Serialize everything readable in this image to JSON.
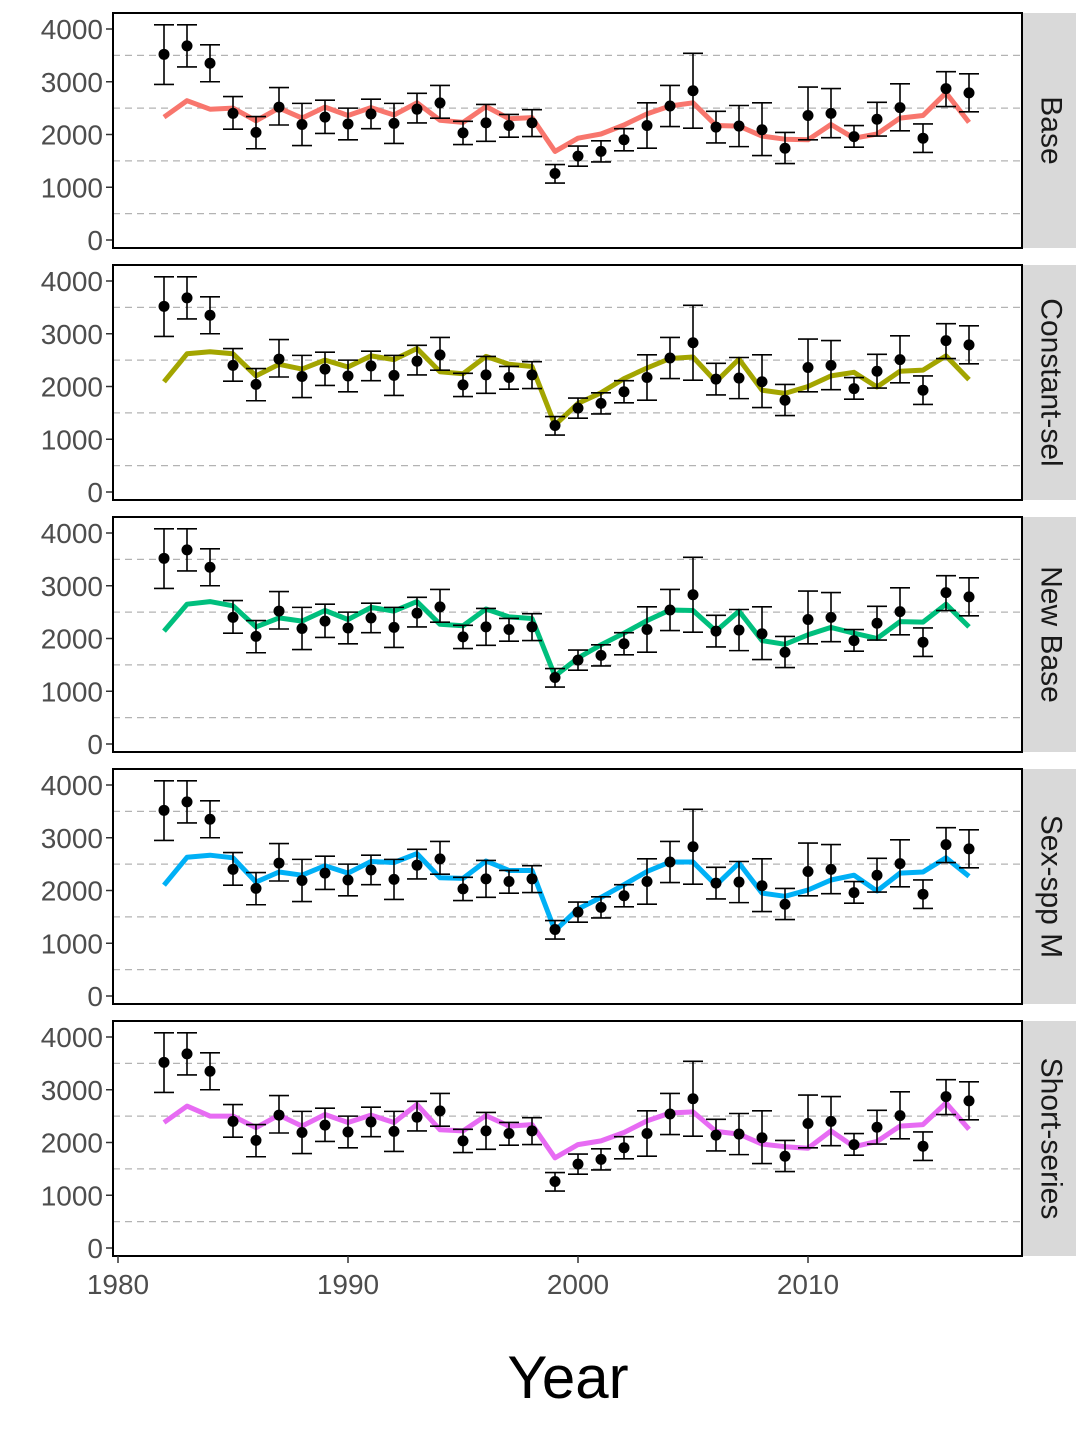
{
  "chart_data": {
    "type": "line",
    "title": "",
    "xlabel": "Year",
    "ylabel": "",
    "xlim": [
      1980,
      2019
    ],
    "ylim": [
      0,
      4200
    ],
    "x_ticks": [
      1980,
      1990,
      2000,
      2010
    ],
    "y_ticks": [
      0,
      1000,
      2000,
      3000,
      4000
    ],
    "grid": "dashed horizontal lines at 500, 1500, 2500, 3500",
    "observed": {
      "x": [
        1982,
        1983,
        1984,
        1985,
        1986,
        1987,
        1988,
        1989,
        1990,
        1991,
        1992,
        1993,
        1994,
        1995,
        1996,
        1997,
        1998,
        1999,
        2000,
        2001,
        2002,
        2003,
        2004,
        2005,
        2006,
        2007,
        2008,
        2009,
        2010,
        2011,
        2012,
        2013,
        2014,
        2015,
        2016,
        2017
      ],
      "y": [
        3520,
        3680,
        3350,
        2400,
        2040,
        2520,
        2190,
        2330,
        2200,
        2390,
        2210,
        2480,
        2600,
        2030,
        2220,
        2170,
        2220,
        1260,
        1590,
        1680,
        1900,
        2170,
        2540,
        2830,
        2140,
        2160,
        2090,
        1740,
        2360,
        2400,
        1960,
        2290,
        2510,
        1930,
        2870,
        2790
      ],
      "lower": [
        2950,
        3280,
        3000,
        2100,
        1730,
        2180,
        1790,
        2020,
        1900,
        2110,
        1830,
        2220,
        2310,
        1810,
        1870,
        1950,
        1960,
        1080,
        1400,
        1480,
        1690,
        1740,
        2150,
        2120,
        1840,
        1770,
        1600,
        1450,
        1900,
        1940,
        1760,
        1970,
        2070,
        1660,
        2530,
        2430
      ],
      "upper": [
        4080,
        4080,
        3700,
        2720,
        2340,
        2890,
        2590,
        2650,
        2500,
        2670,
        2590,
        2780,
        2930,
        2250,
        2570,
        2380,
        2470,
        1430,
        1780,
        1880,
        2110,
        2600,
        2930,
        3540,
        2440,
        2550,
        2600,
        2040,
        2900,
        2870,
        2170,
        2610,
        2960,
        2200,
        3190,
        3150
      ]
    },
    "panels": [
      {
        "label": "Base",
        "color": "#F8766D",
        "fitted": [
          2330,
          2640,
          2480,
          2500,
          2260,
          2500,
          2310,
          2520,
          2360,
          2510,
          2370,
          2600,
          2270,
          2230,
          2530,
          2300,
          2320,
          1680,
          1930,
          2010,
          2180,
          2390,
          2540,
          2600,
          2170,
          2160,
          1970,
          1910,
          1900,
          2190,
          1930,
          2010,
          2310,
          2360,
          2790,
          2230
        ]
      },
      {
        "label": "Constant-sel",
        "color": "#A3A500",
        "fitted": [
          2090,
          2620,
          2660,
          2620,
          2200,
          2420,
          2330,
          2500,
          2370,
          2580,
          2510,
          2720,
          2280,
          2240,
          2570,
          2420,
          2380,
          1270,
          1680,
          1880,
          2150,
          2350,
          2530,
          2560,
          2090,
          2520,
          1930,
          1870,
          2000,
          2200,
          2270,
          1990,
          2290,
          2310,
          2580,
          2130
        ]
      },
      {
        "label": "New Base",
        "color": "#00BF7D",
        "fitted": [
          2140,
          2650,
          2700,
          2620,
          2220,
          2390,
          2330,
          2530,
          2360,
          2590,
          2520,
          2700,
          2270,
          2240,
          2560,
          2410,
          2380,
          1290,
          1630,
          1880,
          2100,
          2340,
          2540,
          2530,
          2140,
          2520,
          1960,
          1890,
          2070,
          2210,
          2100,
          2000,
          2320,
          2310,
          2650,
          2220
        ]
      },
      {
        "label": "Sex-spp M",
        "color": "#00B0F6",
        "fitted": [
          2100,
          2630,
          2670,
          2620,
          2160,
          2350,
          2290,
          2470,
          2330,
          2550,
          2530,
          2700,
          2240,
          2230,
          2560,
          2380,
          2380,
          1240,
          1650,
          1870,
          2110,
          2360,
          2540,
          2540,
          2100,
          2520,
          1950,
          1890,
          2010,
          2200,
          2290,
          1990,
          2330,
          2350,
          2620,
          2270
        ]
      },
      {
        "label": "Short-series",
        "color": "#E76BF3",
        "fitted": [
          2380,
          2690,
          2500,
          2500,
          2280,
          2520,
          2310,
          2530,
          2380,
          2520,
          2380,
          2720,
          2240,
          2220,
          2510,
          2310,
          2340,
          1710,
          1960,
          2030,
          2190,
          2410,
          2560,
          2580,
          2210,
          2160,
          1970,
          1920,
          1890,
          2220,
          1920,
          2020,
          2310,
          2340,
          2750,
          2250
        ]
      }
    ]
  }
}
